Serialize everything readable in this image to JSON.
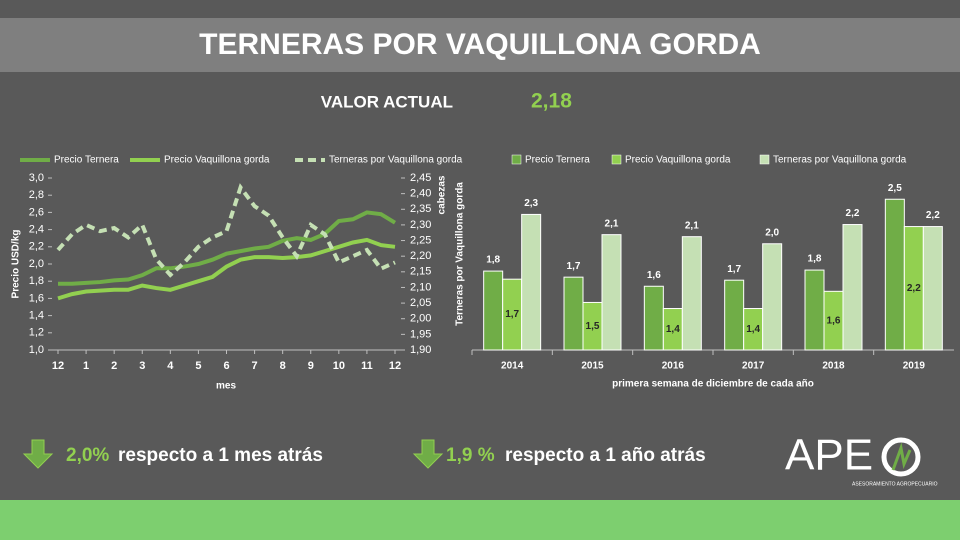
{
  "slide": {
    "title": "TERNERAS POR VAQUILLONA GORDA",
    "current_label": "VALOR ACTUAL",
    "current_value": "2,18",
    "change_month": {
      "value": "2,0%",
      "text": "respecto a 1 mes atrás"
    },
    "change_year": {
      "value": "1,9 %",
      "text": "respecto a 1 año atrás"
    },
    "logo": "APE",
    "logo_subtitle": "ASESORAMIENTO AGROPECUARIO"
  },
  "chart_data": [
    {
      "type": "line",
      "xlabel": "mes",
      "ylabel": "Precio USD/kg",
      "y2label": "cabezas",
      "x": [
        0,
        0.5,
        1,
        1.5,
        2,
        2.5,
        3,
        3.5,
        4,
        4.5,
        5,
        5.5,
        6,
        6.5,
        7,
        7.5,
        8,
        8.5,
        9,
        9.5,
        10,
        10.5,
        11,
        11.5,
        12
      ],
      "xlim": [
        0,
        12
      ],
      "xticks": [
        {
          "value": 0,
          "label": "12"
        },
        1,
        2,
        3,
        4,
        5,
        6,
        7,
        8,
        9,
        10,
        11,
        12
      ],
      "ylim": [
        1,
        3
      ],
      "yticks": [
        {
          "value": 1,
          "label": "1,0"
        },
        {
          "value": 1.2,
          "label": "1,2"
        },
        {
          "value": 1.4,
          "label": "1,4"
        },
        {
          "value": 1.6,
          "label": "1,6"
        },
        {
          "value": 1.8,
          "label": "1,8"
        },
        {
          "value": 2,
          "label": "2,0"
        },
        {
          "value": 2.2,
          "label": "2,2"
        },
        {
          "value": 2.4,
          "label": "2,4"
        },
        {
          "value": 2.6,
          "label": "2,6"
        },
        {
          "value": 2.8,
          "label": "2,8"
        },
        {
          "value": 3,
          "label": "3,0"
        }
      ],
      "y2lim": [
        1.9,
        2.45
      ],
      "y2ticks": [
        {
          "value": 1.9,
          "label": "1,90"
        },
        {
          "value": 1.95,
          "label": "1,95"
        },
        {
          "value": 2,
          "label": "2,00"
        },
        {
          "value": 2.05,
          "label": "2,05"
        },
        {
          "value": 2.1,
          "label": "2,10"
        },
        {
          "value": 2.15,
          "label": "2,15"
        },
        {
          "value": 2.2,
          "label": "2,20"
        },
        {
          "value": 2.25,
          "label": "2,25"
        },
        {
          "value": 2.3,
          "label": "2,30"
        },
        {
          "value": 2.35,
          "label": "2,35"
        },
        {
          "value": 2.4,
          "label": "2,40"
        },
        {
          "value": 2.45,
          "label": "2,45"
        }
      ],
      "series": [
        {
          "name": "Precio Ternera",
          "color": "#70ad47",
          "style": "solid",
          "values": [
            1.77,
            1.77,
            1.78,
            1.79,
            1.81,
            1.82,
            1.87,
            1.95,
            1.95,
            1.97,
            2.0,
            2.05,
            2.12,
            2.15,
            2.18,
            2.2,
            2.27,
            2.3,
            2.28,
            2.35,
            2.5,
            2.52,
            2.6,
            2.58,
            2.48
          ]
        },
        {
          "name": "Precio Vaquillona gorda",
          "color": "#92d050",
          "style": "solid",
          "values": [
            1.6,
            1.65,
            1.68,
            1.69,
            1.7,
            1.7,
            1.75,
            1.72,
            1.7,
            1.75,
            1.8,
            1.85,
            1.97,
            2.05,
            2.08,
            2.08,
            2.07,
            2.08,
            2.1,
            2.15,
            2.2,
            2.25,
            2.28,
            2.22,
            2.2
          ]
        },
        {
          "name": "Terneras por Vaquillona gorda",
          "color": "#c5e0b4",
          "style": "dashed",
          "axis": "y2",
          "values": [
            2.22,
            2.27,
            2.3,
            2.28,
            2.29,
            2.26,
            2.3,
            2.19,
            2.14,
            2.18,
            2.23,
            2.26,
            2.28,
            2.42,
            2.36,
            2.33,
            2.26,
            2.2,
            2.3,
            2.27,
            2.18,
            2.2,
            2.22,
            2.16,
            2.18
          ]
        }
      ]
    },
    {
      "type": "bar",
      "xlabel": "primera semana de diciembre de cada año",
      "ylabel": "Terneras por Vaquillona gorda",
      "categories": [
        "2014",
        "2015",
        "2016",
        "2017",
        "2018",
        "2019"
      ],
      "ylim": [
        1,
        2.7
      ],
      "series": [
        {
          "name": "Precio Ternera",
          "color": "#70ad47",
          "values": [
            1.78,
            1.72,
            1.63,
            1.69,
            1.79,
            2.49
          ],
          "value_labels": [
            "1,8",
            "1,7",
            "1,6",
            "1,7",
            "1,8",
            "2,5"
          ]
        },
        {
          "name": "Precio Vaquillona gorda",
          "color": "#92d050",
          "values": [
            1.7,
            1.47,
            1.41,
            1.41,
            1.58,
            2.22
          ],
          "value_labels": [
            "1,7",
            "1,5",
            "1,4",
            "1,4",
            "1,6",
            "2,2"
          ]
        },
        {
          "name": "Terneras por Vaquillona gorda",
          "color": "#c5e0b4",
          "values": [
            2.34,
            2.14,
            2.12,
            2.05,
            2.24,
            2.22
          ],
          "value_labels": [
            "2,3",
            "2,1",
            "2,1",
            "2,0",
            "2,2",
            "2,2"
          ]
        }
      ]
    }
  ]
}
